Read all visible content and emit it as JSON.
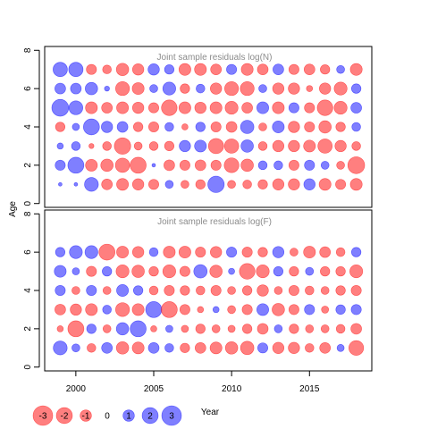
{
  "colors": {
    "negative": "#ff0000",
    "positive": "#0000ff",
    "axis": "#000000",
    "panel_title": "#8c8c8c"
  },
  "chart_data": [
    {
      "type": "scatter",
      "subtype": "bubble",
      "title": "Joint sample residuals log(N)",
      "xlabel": "Year",
      "ylabel": "Age",
      "x_ticks": [
        2000,
        2005,
        2010,
        2015
      ],
      "y_ticks": [
        0,
        2,
        4,
        6,
        8
      ],
      "xlim": [
        1998,
        2019
      ],
      "ylim": [
        -0.2,
        8.2
      ],
      "years": [
        1999,
        2000,
        2001,
        2002,
        2003,
        2004,
        2005,
        2006,
        2007,
        2008,
        2009,
        2010,
        2011,
        2012,
        2013,
        2014,
        2015,
        2016,
        2017,
        2018
      ],
      "ages": [
        1,
        2,
        3,
        4,
        5,
        6,
        7
      ],
      "residuals": [
        [
          0.1,
          0.1,
          1.5,
          -0.9,
          -1.1,
          -1.0,
          -0.8,
          0.5,
          -0.5,
          -0.7,
          2.1,
          -0.5,
          -0.6,
          -0.7,
          -1.0,
          -1.0,
          1.0,
          -1.1,
          -0.8,
          -1.1
        ],
        [
          0.8,
          2.0,
          -1.1,
          -1.2,
          -1.6,
          -2.0,
          0.1,
          -0.9,
          -0.8,
          -0.9,
          -0.8,
          -1.7,
          -1.2,
          0.6,
          0.6,
          -0.8,
          0.8,
          0.5,
          -0.5,
          -2.2
        ],
        [
          0.3,
          0.6,
          -0.2,
          -0.6,
          -2.1,
          -0.5,
          -0.6,
          -0.7,
          1.0,
          1.1,
          -1.8,
          -1.6,
          1.2,
          -0.6,
          -1.0,
          -1.0,
          -1.1,
          -1.6,
          -1.0,
          -0.6
        ],
        [
          -0.7,
          0.4,
          2.0,
          1.0,
          0.9,
          -0.7,
          -0.8,
          0.6,
          -0.3,
          0.7,
          -0.8,
          -0.9,
          1.4,
          -0.5,
          1.1,
          -1.0,
          -0.8,
          -1.2,
          -0.7,
          0.6
        ],
        [
          2.2,
          1.5,
          -1.1,
          -0.9,
          -1.1,
          -1.0,
          -0.8,
          -1.9,
          -1.1,
          -1.0,
          -1.1,
          -1.3,
          -0.9,
          1.1,
          -1.1,
          0.8,
          -0.8,
          -1.9,
          -1.3,
          0.9
        ],
        [
          0.9,
          0.9,
          1.2,
          0.2,
          -1.5,
          -1.1,
          0.5,
          1.3,
          -0.7,
          0.6,
          -1.0,
          -1.5,
          -1.5,
          0.5,
          -1.0,
          -1.0,
          -0.3,
          -1.0,
          -1.3,
          0.7
        ],
        [
          1.6,
          1.6,
          -0.8,
          -0.6,
          -1.2,
          -1.0,
          1.0,
          0.7,
          -1.1,
          -1.1,
          -0.9,
          0.8,
          -1.1,
          -0.9,
          0.9,
          -0.8,
          -0.9,
          -0.7,
          0.5,
          -1.1
        ]
      ]
    },
    {
      "type": "scatter",
      "subtype": "bubble",
      "title": "Joint sample residuals log(F)",
      "xlabel": "Year",
      "ylabel": "Age",
      "x_ticks": [
        2000,
        2005,
        2010,
        2015
      ],
      "y_ticks": [
        0,
        2,
        4,
        6,
        8
      ],
      "xlim": [
        1998,
        2019
      ],
      "ylim": [
        -0.2,
        8.2
      ],
      "years": [
        1999,
        2000,
        2001,
        2002,
        2003,
        2004,
        2005,
        2006,
        2007,
        2008,
        2009,
        2010,
        2011,
        2012,
        2013,
        2014,
        2015,
        2016,
        2017,
        2018
      ],
      "ages": [
        1,
        2,
        3,
        4,
        5,
        6
      ],
      "residuals": [
        [
          1.5,
          0.5,
          -0.6,
          0.9,
          -1.2,
          -1.1,
          0.9,
          0.6,
          -0.7,
          -0.9,
          -1.1,
          -1.2,
          -1.4,
          0.8,
          -1.0,
          -1.0,
          -0.6,
          -0.9,
          0.4,
          -1.7
        ],
        [
          -0.3,
          -2.0,
          0.7,
          -0.5,
          1.2,
          2.0,
          -0.3,
          0.4,
          -0.4,
          -0.7,
          -0.5,
          -0.4,
          -0.7,
          -0.9,
          0.5,
          -0.7,
          -0.5,
          -0.5,
          -0.6,
          -0.9
        ],
        [
          -0.9,
          -1.0,
          -1.1,
          0.6,
          -1.5,
          -1.1,
          2.0,
          -2.0,
          -0.8,
          -0.3,
          0.3,
          -0.5,
          -0.8,
          1.1,
          -1.2,
          -0.8,
          0.8,
          -0.4,
          0.7,
          0.8
        ],
        [
          0.8,
          -0.5,
          0.8,
          -0.5,
          1.1,
          0.7,
          -0.6,
          -0.8,
          -0.7,
          -0.6,
          -0.8,
          -0.5,
          -0.7,
          -1.0,
          -0.5,
          -0.8,
          -0.6,
          -0.5,
          -0.7,
          -0.8
        ],
        [
          1.1,
          0.4,
          -0.8,
          0.7,
          -1.3,
          -1.2,
          -0.7,
          -1.3,
          -0.8,
          1.4,
          -1.2,
          0.3,
          -1.9,
          -1.3,
          0.7,
          -0.7,
          0.5,
          -0.7,
          -0.7,
          -1.3
        ],
        [
          0.7,
          1.3,
          1.3,
          -2.0,
          -1.1,
          -1.0,
          0.6,
          -1.1,
          -1.1,
          -0.8,
          -1.0,
          0.8,
          -0.8,
          -0.7,
          1.0,
          -0.5,
          -1.1,
          -0.9,
          -0.6,
          0.7
        ]
      ]
    }
  ],
  "legend": {
    "items": [
      {
        "label": "-3",
        "value": -3
      },
      {
        "label": "-2",
        "value": -2
      },
      {
        "label": "-1",
        "value": -1
      },
      {
        "label": "0",
        "value": 0
      },
      {
        "label": "1",
        "value": 1
      },
      {
        "label": "2",
        "value": 2
      },
      {
        "label": "3",
        "value": 3
      }
    ]
  }
}
